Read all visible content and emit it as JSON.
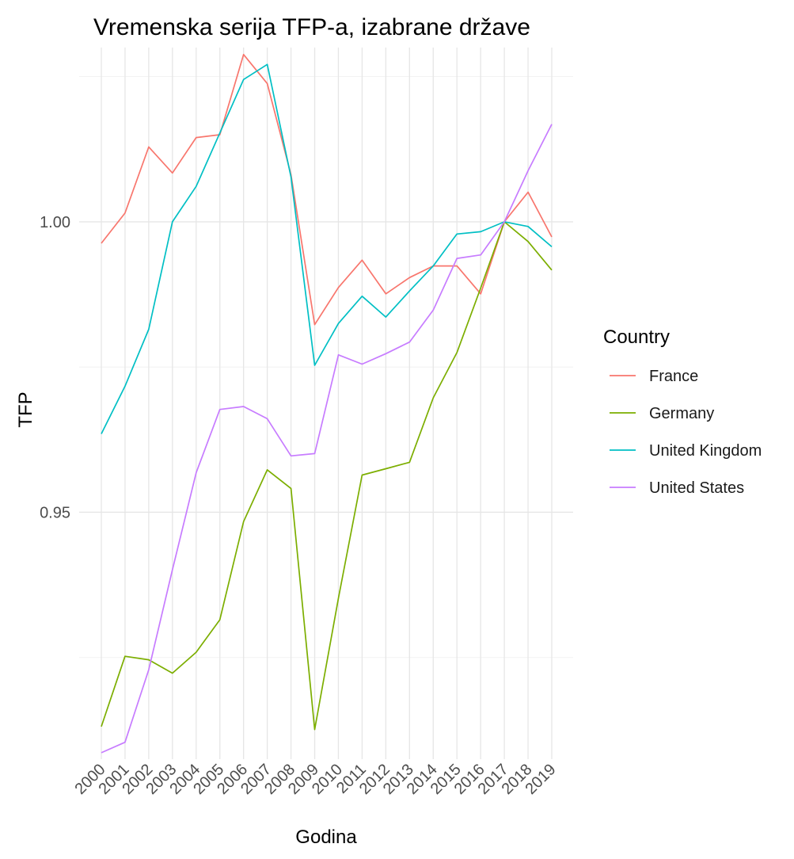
{
  "chart_data": {
    "type": "line",
    "title": "Vremenska serija TFP-a, izabrane države",
    "xlabel": "Godina",
    "ylabel": "TFP",
    "x": [
      2000,
      2001,
      2002,
      2003,
      2004,
      2005,
      2006,
      2007,
      2008,
      2009,
      2010,
      2011,
      2012,
      2013,
      2014,
      2015,
      2016,
      2017,
      2018,
      2019
    ],
    "x_tick_labels": [
      "2000",
      "2001",
      "2002",
      "2003",
      "2004",
      "2005",
      "2006",
      "2007",
      "2008",
      "2009",
      "2010",
      "2011",
      "2012",
      "2013",
      "2014",
      "2015",
      "2016",
      "2017",
      "2018",
      "2019"
    ],
    "ylim": [
      0.9075,
      1.03
    ],
    "y_ticks": [
      0.95,
      1.0
    ],
    "y_tick_labels": [
      "0.95",
      "1.00"
    ],
    "grid": true,
    "legend": {
      "title": "Country",
      "position": "right"
    },
    "series": [
      {
        "name": "France",
        "color": "#F8766D",
        "values": [
          0.9963,
          1.0015,
          1.0129,
          1.0084,
          1.0145,
          1.015,
          1.0288,
          1.0238,
          1.0081,
          0.9823,
          0.9887,
          0.9934,
          0.9876,
          0.9904,
          0.9924,
          0.9924,
          0.9876,
          1.0,
          1.0051,
          0.9974
        ]
      },
      {
        "name": "Germany",
        "color": "#7CAE00",
        "values": [
          0.9131,
          0.9252,
          0.9246,
          0.9223,
          0.9259,
          0.9315,
          0.9484,
          0.9573,
          0.9541,
          0.9126,
          0.9352,
          0.9564,
          0.9575,
          0.9586,
          0.9697,
          0.9775,
          0.9886,
          1.0,
          0.9966,
          0.9917
        ]
      },
      {
        "name": "United Kingdom",
        "color": "#00BFC4",
        "values": [
          0.9635,
          0.9717,
          0.9815,
          1.0,
          1.0061,
          1.0153,
          1.0245,
          1.0271,
          1.0077,
          0.9753,
          0.9825,
          0.9872,
          0.9836,
          0.9881,
          0.9924,
          0.9979,
          0.9983,
          1.0,
          0.9992,
          0.9957
        ]
      },
      {
        "name": "United States",
        "color": "#C77CFF",
        "values": [
          0.9086,
          0.9104,
          0.9229,
          0.9401,
          0.9568,
          0.9677,
          0.9682,
          0.9661,
          0.9597,
          0.9601,
          0.9771,
          0.9755,
          0.9773,
          0.9793,
          0.9848,
          0.9937,
          0.9943,
          1.0,
          1.0088,
          1.0168
        ]
      }
    ]
  }
}
